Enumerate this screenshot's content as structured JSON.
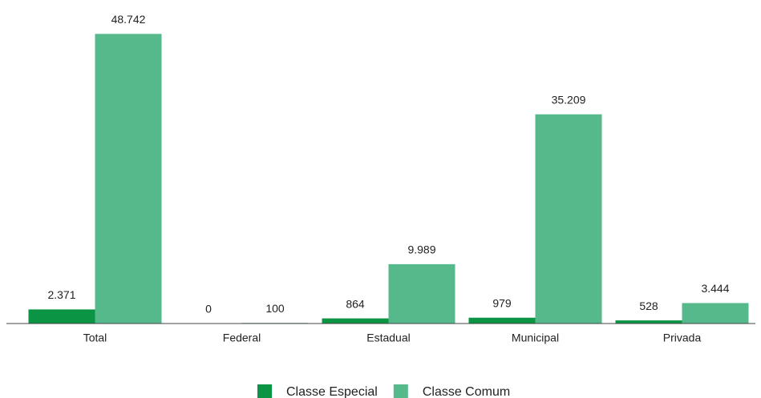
{
  "chart_data": {
    "type": "bar",
    "categories": [
      "Total",
      "Federal",
      "Estadual",
      "Municipal",
      "Privada"
    ],
    "series": [
      {
        "name": "Classe Especial",
        "color": "#0a9444",
        "values": [
          2371,
          0,
          864,
          979,
          528
        ],
        "value_labels": [
          "2.371",
          "0",
          "864",
          "979",
          "528"
        ]
      },
      {
        "name": "Classe Comum",
        "color": "#55b98b",
        "values": [
          48742,
          100,
          9989,
          35209,
          3444
        ],
        "value_labels": [
          "48.742",
          "100",
          "9.989",
          "35.209",
          "3.444"
        ]
      }
    ],
    "ylim": [
      0,
      50000
    ]
  }
}
